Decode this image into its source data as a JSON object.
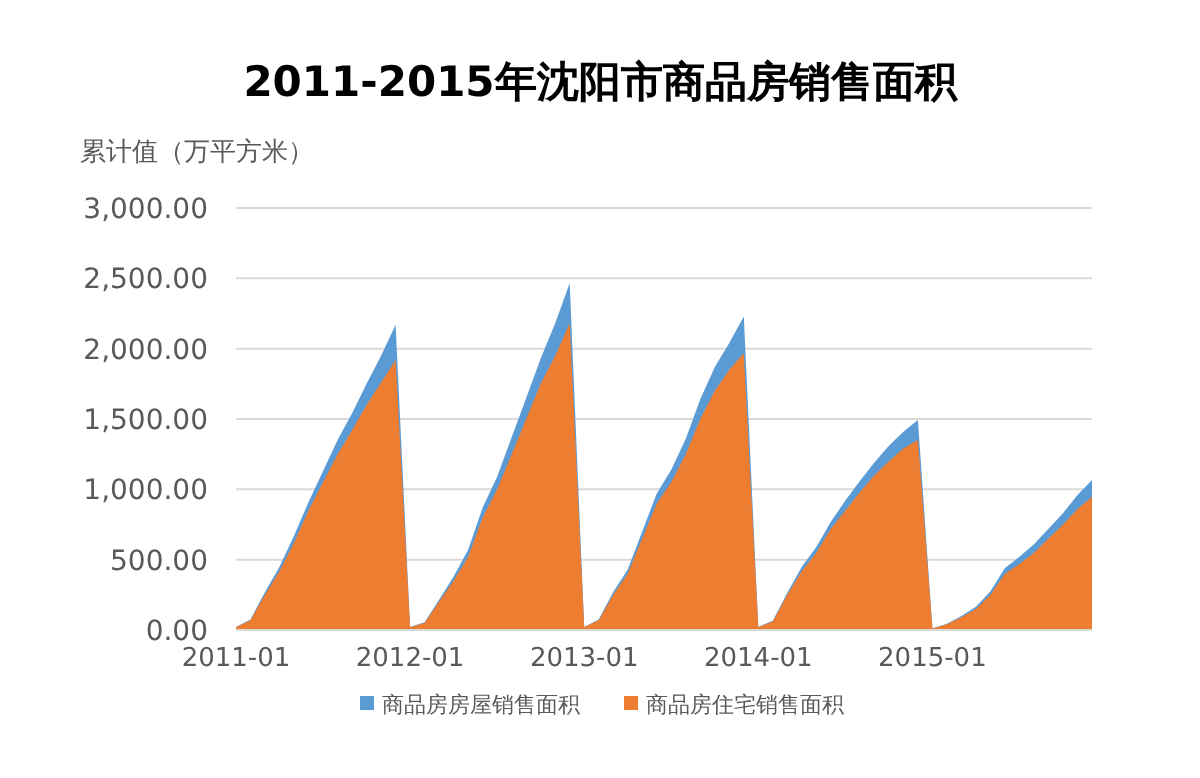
{
  "chart_data": {
    "type": "area",
    "title": "2011-2015年沈阳市商品房销售面积",
    "ylabel": "累计值（万平方米）",
    "categories": [
      "2011-01",
      null,
      null,
      null,
      null,
      null,
      null,
      null,
      null,
      null,
      null,
      null,
      "2012-01",
      null,
      null,
      null,
      null,
      null,
      null,
      null,
      null,
      null,
      null,
      null,
      "2013-01",
      null,
      null,
      null,
      null,
      null,
      null,
      null,
      null,
      null,
      null,
      null,
      "2014-01",
      null,
      null,
      null,
      null,
      null,
      null,
      null,
      null,
      null,
      null,
      null,
      "2015-01",
      null,
      null,
      null,
      null,
      null,
      null,
      null,
      null,
      null,
      null,
      null
    ],
    "series": [
      {
        "name": "商品房房屋销售面积",
        "color": "#5b9bd5",
        "values": [
          22,
          75,
          270,
          450,
          670,
          910,
          1130,
          1350,
          1540,
          1750,
          1950,
          2170,
          22,
          55,
          215,
          380,
          570,
          870,
          1090,
          1370,
          1650,
          1930,
          2180,
          2465,
          22,
          75,
          270,
          430,
          700,
          970,
          1140,
          1360,
          1640,
          1870,
          2040,
          2228,
          22,
          65,
          265,
          450,
          590,
          770,
          920,
          1060,
          1190,
          1310,
          1410,
          1493,
          11,
          44,
          100,
          165,
          275,
          440,
          520,
          610,
          720,
          830,
          960,
          1066
        ]
      },
      {
        "name": "商品房住宅销售面积",
        "color": "#ed7d31",
        "values": [
          20,
          70,
          250,
          420,
          620,
          850,
          1050,
          1250,
          1420,
          1600,
          1760,
          1920,
          20,
          50,
          200,
          350,
          520,
          800,
          1000,
          1250,
          1500,
          1750,
          1950,
          2180,
          20,
          70,
          250,
          400,
          650,
          900,
          1050,
          1250,
          1500,
          1700,
          1850,
          1967,
          20,
          60,
          250,
          420,
          550,
          720,
          850,
          980,
          1100,
          1200,
          1290,
          1350,
          10,
          40,
          90,
          150,
          250,
          400,
          470,
          550,
          650,
          750,
          860,
          948
        ]
      }
    ],
    "ylim": [
      0,
      3000
    ],
    "yticks": [
      {
        "value": 0,
        "label": "0.00"
      },
      {
        "value": 500,
        "label": "500.00"
      },
      {
        "value": 1000,
        "label": "1,000.00"
      },
      {
        "value": 1500,
        "label": "1,500.00"
      },
      {
        "value": 2000,
        "label": "2,000.00"
      },
      {
        "value": 2500,
        "label": "2,500.00"
      },
      {
        "value": 3000,
        "label": "3,000.00"
      }
    ],
    "grid": "y",
    "legend": "bottom"
  }
}
